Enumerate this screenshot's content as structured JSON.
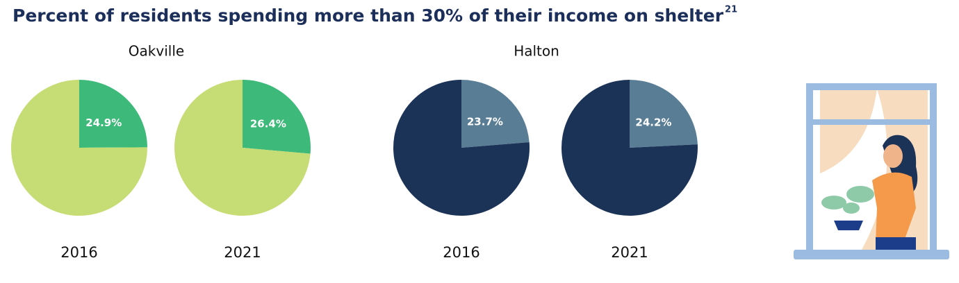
{
  "title": "Percent of residents spending more than 30% of their income on shelter",
  "title_note": "21",
  "chart_data": [
    {
      "type": "pie",
      "title": "Oakville",
      "colors": [
        "#3dba7a",
        "#c6dc74"
      ],
      "pies": [
        {
          "label": "2016",
          "values": [
            24.9,
            75.1
          ],
          "value_labels": [
            "24.9%",
            null
          ]
        },
        {
          "label": "2021",
          "values": [
            26.4,
            73.6
          ],
          "value_labels": [
            "26.4%",
            null
          ]
        }
      ]
    },
    {
      "type": "pie",
      "title": "Halton",
      "colors": [
        "#5a7d96",
        "#1c3358"
      ],
      "pies": [
        {
          "label": "2016",
          "values": [
            23.7,
            76.3
          ],
          "value_labels": [
            "23.7%",
            null
          ]
        },
        {
          "label": "2021",
          "values": [
            24.2,
            75.8
          ],
          "value_labels": [
            "24.2%",
            null
          ]
        }
      ]
    }
  ]
}
